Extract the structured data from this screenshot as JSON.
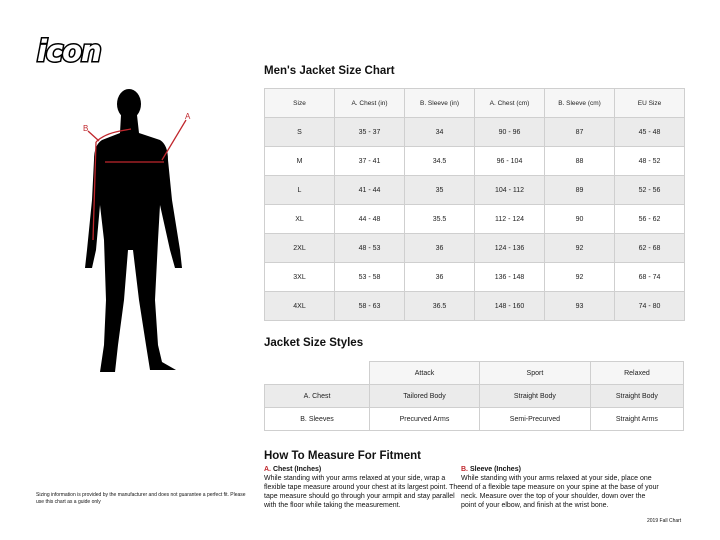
{
  "brand": {
    "logo_text": "icon"
  },
  "figure": {
    "label_a": "A",
    "label_b": "B",
    "accent": "#c0272d"
  },
  "size_chart": {
    "title": "Men's Jacket Size Chart",
    "headers": [
      "Size",
      "A. Chest (in)",
      "B. Sleeve (in)",
      "A. Chest (cm)",
      "B. Sleeve (cm)",
      "EU Size"
    ],
    "rows": [
      [
        "S",
        "35 - 37",
        "34",
        "90 - 96",
        "87",
        "45 - 48"
      ],
      [
        "M",
        "37 - 41",
        "34.5",
        "96 - 104",
        "88",
        "48 - 52"
      ],
      [
        "L",
        "41 - 44",
        "35",
        "104 - 112",
        "89",
        "52 - 56"
      ],
      [
        "XL",
        "44 - 48",
        "35.5",
        "112 - 124",
        "90",
        "56 - 62"
      ],
      [
        "2XL",
        "48 - 53",
        "36",
        "124 - 136",
        "92",
        "62 - 68"
      ],
      [
        "3XL",
        "53 - 58",
        "36",
        "136 - 148",
        "92",
        "68 - 74"
      ],
      [
        "4XL",
        "58 - 63",
        "36.5",
        "148 - 160",
        "93",
        "74 - 80"
      ]
    ]
  },
  "styles": {
    "title": "Jacket Size Styles",
    "headers": [
      "Attack",
      "Sport",
      "Relaxed"
    ],
    "rows": [
      [
        "A. Chest",
        "Tailored Body",
        "Straight Body",
        "Straight Body"
      ],
      [
        "B. Sleeves",
        "Precurved Arms",
        "Semi-Precurved",
        "Straight Arms"
      ]
    ]
  },
  "measure": {
    "title": "How To Measure For Fitment",
    "chest": {
      "letter": "A.",
      "heading": "Chest (Inches)",
      "text": "While standing with your arms relaxed at your side, wrap a flexible tape measure around your chest at its largest point. The tape measure should go through your armpit and stay parallel with the floor while taking the measurement."
    },
    "sleeve": {
      "letter": "B.",
      "heading": "Sleeve (Inches)",
      "text": "While standing with your arms relaxed at your side, place one end of a flexible tape measure on your spine at the base of your neck. Measure over the top of your shoulder, down over the point of your elbow, and finish at the wrist bone."
    }
  },
  "disclaimer": "Sizing information is provided by the manufacturer and does not guarantee a perfect fit. Please use this chart as a guide only",
  "footer": "2019 Fall Chart"
}
